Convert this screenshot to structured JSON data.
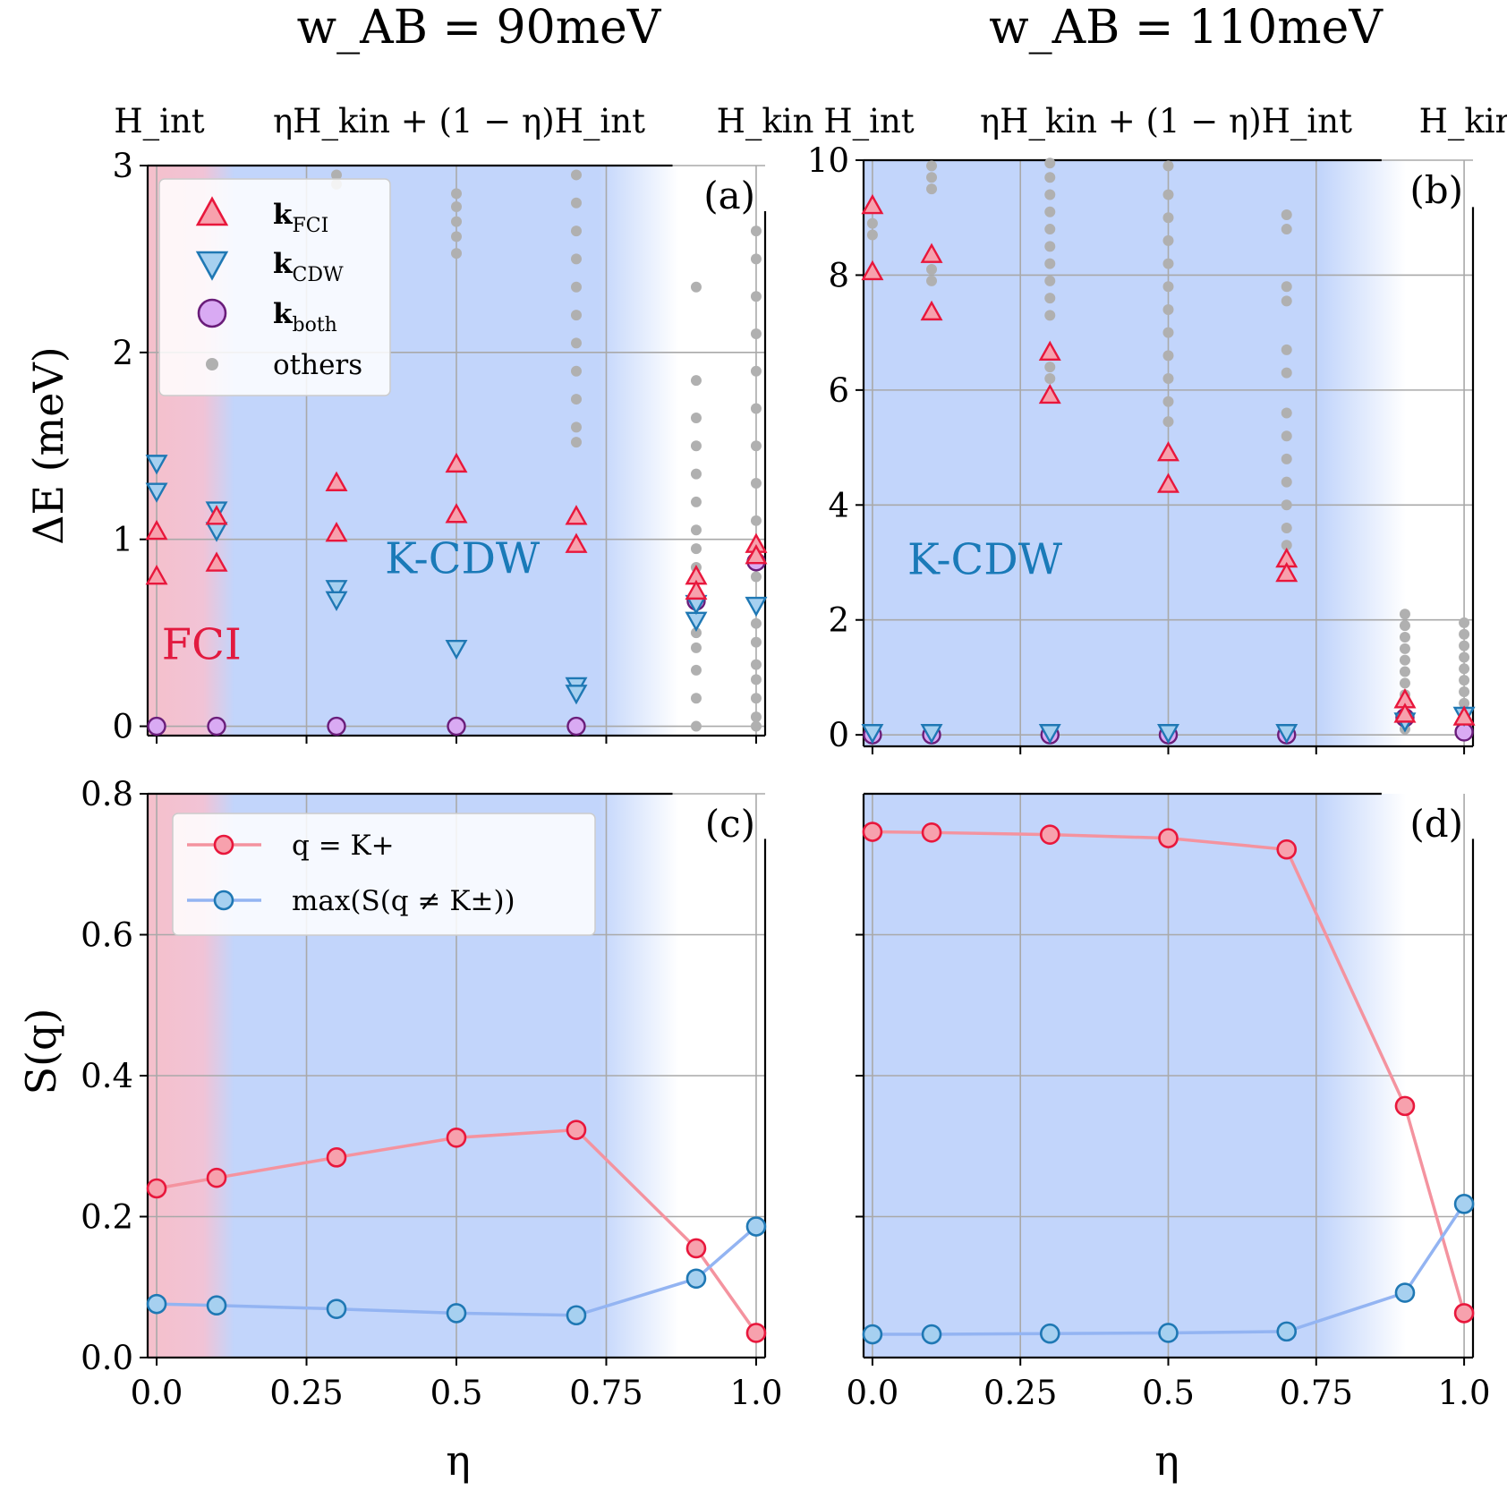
{
  "figure": {
    "titles": [
      "w_AB = 90meV",
      "w_AB = 110meV"
    ],
    "hamiltonian_labels": {
      "left": "H_int",
      "middle": "ηH_kin + (1 − η)H_int",
      "right": "H_kin"
    },
    "xlabel": "η",
    "ylabel_top": "ΔE (meV)",
    "ylabel_bottom": "S(q)",
    "colors": {
      "fci_red": "#e8173c",
      "fci_fill": "#f7a1ad",
      "cdw_blue": "#1f78b4",
      "cdw_fill": "#a6d0f0",
      "both_purple": "#6a1d7a",
      "both_fill": "#d9aaf3",
      "others": "#b0b0b0",
      "line_red": "#f4939f",
      "line_blue": "#93b4f2",
      "region_blue": "#c2d5fb",
      "region_pink": "#f4c2cd",
      "cdw_text": "#1a7ab8",
      "fci_text": "#e21a3f"
    }
  },
  "chart_data": [
    {
      "type": "scatter",
      "panel": "(a)",
      "xlim": [
        -0.015,
        1.015
      ],
      "ylim": [
        -0.05,
        3.0
      ],
      "xticks": [
        0.0,
        0.25,
        0.5,
        0.75,
        1.0
      ],
      "yticks": [
        0,
        1,
        2,
        3
      ],
      "ytick_labels": [
        "0",
        "1",
        "2",
        "3"
      ],
      "region_labels": [
        {
          "text": "K-CDW",
          "x": 0.51,
          "y": 0.82
        },
        {
          "text": "FCI",
          "x": 0.075,
          "y": 0.36
        }
      ],
      "series": [
        {
          "name": "k_FCI",
          "marker": "triangle-up",
          "points": [
            [
              0.0,
              1.04
            ],
            [
              0.0,
              0.8
            ],
            [
              0.1,
              1.12
            ],
            [
              0.1,
              0.87
            ],
            [
              0.3,
              1.3
            ],
            [
              0.3,
              1.03
            ],
            [
              0.5,
              1.4
            ],
            [
              0.5,
              1.13
            ],
            [
              0.7,
              1.12
            ],
            [
              0.7,
              0.97
            ],
            [
              0.9,
              0.8
            ],
            [
              0.9,
              0.72
            ],
            [
              1.0,
              0.97
            ],
            [
              1.0,
              0.91
            ]
          ]
        },
        {
          "name": "k_CDW",
          "marker": "triangle-down",
          "points": [
            [
              0.0,
              1.41
            ],
            [
              0.0,
              1.26
            ],
            [
              0.1,
              1.16
            ],
            [
              0.1,
              1.05
            ],
            [
              0.3,
              0.74
            ],
            [
              0.3,
              0.68
            ],
            [
              0.5,
              0.42
            ],
            [
              0.7,
              0.22
            ],
            [
              0.7,
              0.18
            ],
            [
              0.9,
              0.57
            ],
            [
              0.9,
              0.66
            ],
            [
              1.0,
              0.65
            ]
          ]
        },
        {
          "name": "k_both",
          "marker": "circle",
          "points": [
            [
              0.0,
              0.0
            ],
            [
              0.1,
              0.0
            ],
            [
              0.3,
              0.0
            ],
            [
              0.5,
              0.0
            ],
            [
              0.7,
              0.0
            ],
            [
              0.9,
              0.67
            ],
            [
              1.0,
              0.88
            ]
          ]
        },
        {
          "name": "others",
          "marker": "dot",
          "points": [
            [
              0.3,
              2.95
            ],
            [
              0.3,
              2.9
            ],
            [
              0.5,
              2.85
            ],
            [
              0.5,
              2.78
            ],
            [
              0.5,
              2.7
            ],
            [
              0.5,
              2.62
            ],
            [
              0.5,
              2.53
            ],
            [
              0.7,
              2.95
            ],
            [
              0.7,
              2.8
            ],
            [
              0.7,
              2.65
            ],
            [
              0.7,
              2.5
            ],
            [
              0.7,
              2.35
            ],
            [
              0.7,
              2.2
            ],
            [
              0.7,
              2.05
            ],
            [
              0.7,
              1.9
            ],
            [
              0.7,
              1.75
            ],
            [
              0.7,
              1.6
            ],
            [
              0.7,
              1.52
            ],
            [
              0.9,
              2.35
            ],
            [
              0.9,
              1.85
            ],
            [
              0.9,
              1.65
            ],
            [
              0.9,
              1.5
            ],
            [
              0.9,
              1.35
            ],
            [
              0.9,
              1.2
            ],
            [
              0.9,
              1.05
            ],
            [
              0.9,
              0.95
            ],
            [
              0.9,
              0.85
            ],
            [
              0.9,
              0.5
            ],
            [
              0.9,
              0.42
            ],
            [
              0.9,
              0.3
            ],
            [
              0.9,
              0.15
            ],
            [
              0.9,
              0.0
            ],
            [
              1.0,
              2.65
            ],
            [
              1.0,
              2.5
            ],
            [
              1.0,
              2.3
            ],
            [
              1.0,
              2.1
            ],
            [
              1.0,
              1.9
            ],
            [
              1.0,
              1.7
            ],
            [
              1.0,
              1.5
            ],
            [
              1.0,
              1.3
            ],
            [
              1.0,
              1.1
            ],
            [
              1.0,
              0.8
            ],
            [
              1.0,
              0.55
            ],
            [
              1.0,
              0.45
            ],
            [
              1.0,
              0.33
            ],
            [
              1.0,
              0.25
            ],
            [
              1.0,
              0.15
            ],
            [
              1.0,
              0.05
            ],
            [
              1.0,
              0.0
            ]
          ]
        }
      ],
      "legend": [
        "k_FCI",
        "k_CDW",
        "k_both",
        "others"
      ]
    },
    {
      "type": "scatter",
      "panel": "(b)",
      "xlim": [
        -0.015,
        1.015
      ],
      "ylim": [
        -0.2,
        10.0
      ],
      "xticks": [
        0.0,
        0.25,
        0.5,
        0.75,
        1.0
      ],
      "yticks": [
        0,
        2,
        4,
        6,
        8,
        10
      ],
      "ytick_labels": [
        "0",
        "2",
        "4",
        "6",
        "8",
        "10"
      ],
      "region_labels": [
        {
          "text": "K-CDW",
          "x": 0.19,
          "y": 2.8
        }
      ],
      "series": [
        {
          "name": "k_FCI",
          "marker": "triangle-up",
          "points": [
            [
              0.0,
              9.2
            ],
            [
              0.0,
              8.05
            ],
            [
              0.1,
              8.35
            ],
            [
              0.1,
              7.35
            ],
            [
              0.3,
              6.65
            ],
            [
              0.3,
              5.9
            ],
            [
              0.5,
              4.9
            ],
            [
              0.5,
              4.35
            ],
            [
              0.7,
              3.05
            ],
            [
              0.7,
              2.8
            ],
            [
              0.9,
              0.6
            ],
            [
              0.9,
              0.35
            ],
            [
              1.0,
              0.3
            ]
          ]
        },
        {
          "name": "k_CDW",
          "marker": "triangle-down",
          "points": [
            [
              0.0,
              0.05
            ],
            [
              0.1,
              0.05
            ],
            [
              0.3,
              0.05
            ],
            [
              0.5,
              0.05
            ],
            [
              0.7,
              0.05
            ],
            [
              0.9,
              0.25
            ],
            [
              1.0,
              0.35
            ]
          ]
        },
        {
          "name": "k_both",
          "marker": "circle",
          "points": [
            [
              0.0,
              0.0
            ],
            [
              0.1,
              0.0
            ],
            [
              0.3,
              0.0
            ],
            [
              0.5,
              0.0
            ],
            [
              0.7,
              0.0
            ],
            [
              0.9,
              0.3
            ],
            [
              1.0,
              0.05
            ]
          ]
        },
        {
          "name": "others",
          "marker": "dot",
          "points": [
            [
              0.0,
              8.9
            ],
            [
              0.0,
              8.7
            ],
            [
              0.1,
              9.9
            ],
            [
              0.1,
              9.7
            ],
            [
              0.1,
              9.5
            ],
            [
              0.1,
              8.1
            ],
            [
              0.1,
              7.9
            ],
            [
              0.3,
              9.95
            ],
            [
              0.3,
              9.7
            ],
            [
              0.3,
              9.4
            ],
            [
              0.3,
              9.1
            ],
            [
              0.3,
              8.8
            ],
            [
              0.3,
              8.5
            ],
            [
              0.3,
              8.2
            ],
            [
              0.3,
              7.9
            ],
            [
              0.3,
              7.6
            ],
            [
              0.3,
              7.3
            ],
            [
              0.3,
              6.4
            ],
            [
              0.3,
              6.2
            ],
            [
              0.5,
              9.9
            ],
            [
              0.5,
              9.4
            ],
            [
              0.5,
              9.0
            ],
            [
              0.5,
              8.6
            ],
            [
              0.5,
              8.2
            ],
            [
              0.5,
              7.8
            ],
            [
              0.5,
              7.4
            ],
            [
              0.5,
              7.0
            ],
            [
              0.5,
              6.6
            ],
            [
              0.5,
              6.2
            ],
            [
              0.5,
              5.8
            ],
            [
              0.5,
              5.45
            ],
            [
              0.7,
              9.05
            ],
            [
              0.7,
              8.8
            ],
            [
              0.7,
              7.8
            ],
            [
              0.7,
              7.55
            ],
            [
              0.7,
              6.7
            ],
            [
              0.7,
              6.3
            ],
            [
              0.7,
              5.6
            ],
            [
              0.7,
              5.2
            ],
            [
              0.7,
              4.8
            ],
            [
              0.7,
              4.4
            ],
            [
              0.7,
              4.0
            ],
            [
              0.7,
              3.6
            ],
            [
              0.7,
              3.3
            ],
            [
              0.9,
              2.1
            ],
            [
              0.9,
              1.9
            ],
            [
              0.9,
              1.7
            ],
            [
              0.9,
              1.5
            ],
            [
              0.9,
              1.3
            ],
            [
              0.9,
              1.1
            ],
            [
              0.9,
              0.9
            ],
            [
              0.9,
              0.7
            ],
            [
              0.9,
              0.1
            ],
            [
              1.0,
              1.95
            ],
            [
              1.0,
              1.75
            ],
            [
              1.0,
              1.55
            ],
            [
              1.0,
              1.35
            ],
            [
              1.0,
              1.15
            ],
            [
              1.0,
              0.95
            ],
            [
              1.0,
              0.75
            ],
            [
              1.0,
              0.55
            ]
          ]
        }
      ]
    },
    {
      "type": "line",
      "panel": "(c)",
      "xlim": [
        -0.015,
        1.015
      ],
      "ylim": [
        0.0,
        0.8
      ],
      "xticks": [
        0.0,
        0.25,
        0.5,
        0.75,
        1.0
      ],
      "xtick_labels": [
        "0.0",
        "0.25",
        "0.5",
        "0.75",
        "1.0"
      ],
      "yticks": [
        0.0,
        0.2,
        0.4,
        0.6,
        0.8
      ],
      "ytick_labels": [
        "0.0",
        "0.2",
        "0.4",
        "0.6",
        "0.8"
      ],
      "x": [
        0.0,
        0.1,
        0.3,
        0.5,
        0.7,
        0.9,
        1.0
      ],
      "series": [
        {
          "name": "q = K+",
          "values": [
            0.24,
            0.255,
            0.284,
            0.312,
            0.323,
            0.155,
            0.035
          ]
        },
        {
          "name": "max(S(q ≠ K±))",
          "values": [
            0.076,
            0.074,
            0.069,
            0.063,
            0.06,
            0.112,
            0.186
          ]
        }
      ],
      "legend": [
        "q = K+",
        "max(S(q ≠ K±))"
      ]
    },
    {
      "type": "line",
      "panel": "(d)",
      "xlim": [
        -0.015,
        1.015
      ],
      "ylim": [
        0.0,
        0.8
      ],
      "xticks": [
        0.0,
        0.25,
        0.5,
        0.75,
        1.0
      ],
      "xtick_labels": [
        "0.0",
        "0.25",
        "0.5",
        "0.75",
        "1.0"
      ],
      "yticks": [
        0.2,
        0.4,
        0.6
      ],
      "x": [
        0.0,
        0.1,
        0.3,
        0.5,
        0.7,
        0.9,
        1.0
      ],
      "series": [
        {
          "name": "q = K+",
          "values": [
            0.746,
            0.745,
            0.742,
            0.737,
            0.721,
            0.357,
            0.063
          ]
        },
        {
          "name": "max(S(q ≠ K±))",
          "values": [
            0.033,
            0.033,
            0.034,
            0.035,
            0.037,
            0.092,
            0.218
          ]
        }
      ]
    }
  ]
}
